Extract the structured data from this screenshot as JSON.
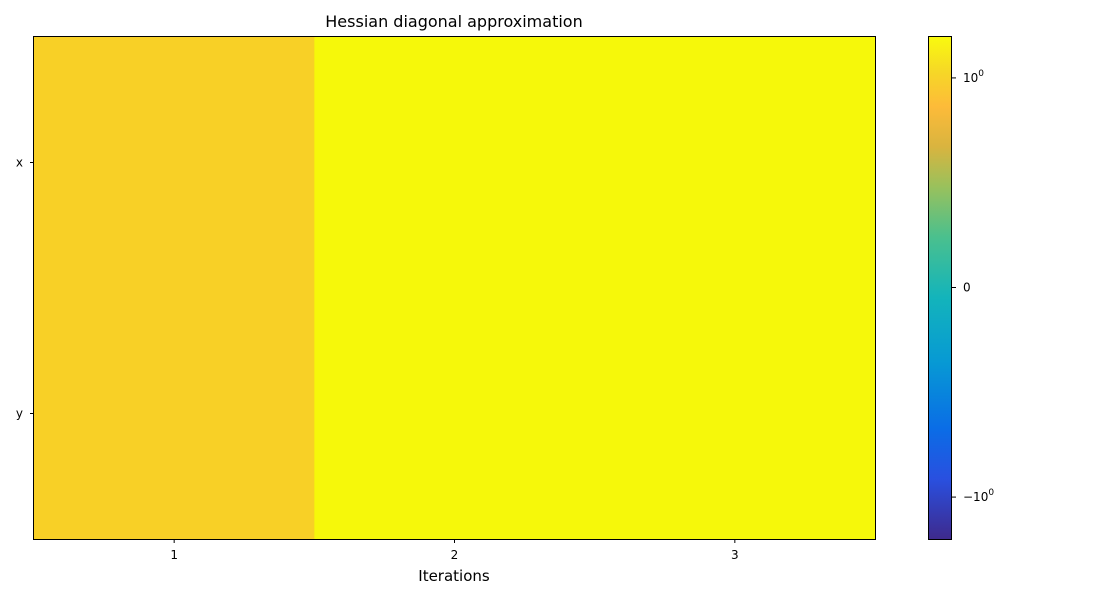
{
  "chart_data": {
    "type": "heatmap",
    "title": "Hessian diagonal approximation",
    "xlabel": "Iterations",
    "ylabel": "",
    "x_categories": [
      "1",
      "2",
      "3"
    ],
    "y_categories": [
      "x",
      "y"
    ],
    "values": [
      [
        0.95,
        1.2,
        1.2
      ],
      [
        0.95,
        1.2,
        1.2
      ]
    ],
    "color_scale": "symlog",
    "colormap": "parula",
    "colorbar": {
      "range": [
        -1.2,
        1.2
      ],
      "ticks": [
        {
          "value": 1,
          "base": "10",
          "exponent": "0"
        },
        {
          "value": 0,
          "base": "0",
          "exponent": ""
        },
        {
          "value": -1,
          "base": "−10",
          "exponent": "0"
        }
      ]
    },
    "grid": false,
    "colors": {
      "cell_low": "#f8d026",
      "cell_high": "#f6f80a"
    }
  }
}
